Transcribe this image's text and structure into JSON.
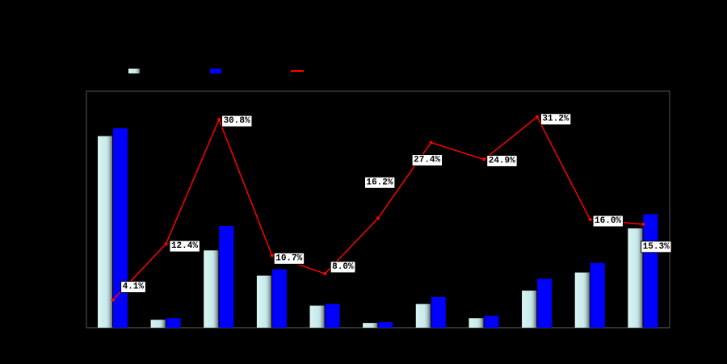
{
  "chart_data": {
    "type": "bar",
    "categories": [
      null,
      null,
      null,
      null,
      null,
      null,
      null,
      null,
      null,
      null,
      null
    ],
    "series": [
      {
        "type": "bar",
        "color": "#c8ecec",
        "values": [
          243,
          10,
          98,
          66,
          28,
          6,
          30,
          12,
          47,
          70,
          126
        ]
      },
      {
        "type": "bar",
        "color": "#0000ff",
        "values": [
          253,
          12,
          129,
          74,
          30,
          7,
          39,
          15,
          62,
          82,
          144
        ]
      },
      {
        "type": "line",
        "axis": "y2",
        "color": "#ff0000",
        "values": [
          4.1,
          12.4,
          30.8,
          10.7,
          8.0,
          16.2,
          27.4,
          24.9,
          31.2,
          16.0,
          15.3
        ],
        "value_labels": [
          "4.1%",
          "12.4%",
          "30.8%",
          "10.7%",
          "8.0%",
          "16.2%",
          "27.4%",
          "24.9%",
          "31.2%",
          "16.0%",
          "15.3%"
        ]
      }
    ],
    "ylim": [
      0,
      300
    ],
    "y2lim": [
      0,
      35
    ],
    "legend": "top"
  }
}
